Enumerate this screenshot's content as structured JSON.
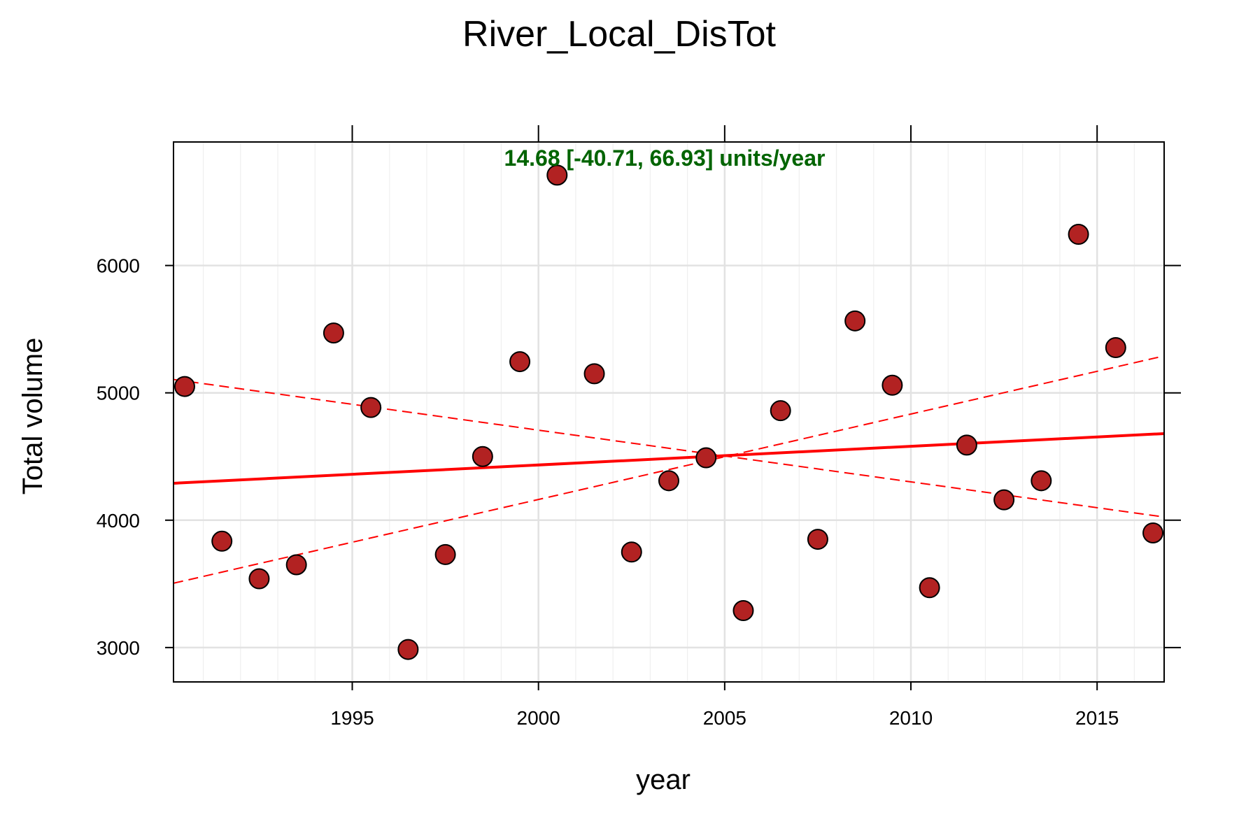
{
  "chart_data": {
    "type": "scatter",
    "title": "River_Local_DisTot",
    "xlabel": "year",
    "ylabel": "Total volume",
    "xlim": [
      1990.2,
      2016.8
    ],
    "ylim": [
      2730,
      6970
    ],
    "x_ticks": [
      1995,
      2000,
      2005,
      2010,
      2015
    ],
    "x_tick_labels": [
      "1995",
      "2000",
      "2005",
      "2010",
      "2015"
    ],
    "y_ticks": [
      3000,
      4000,
      5000,
      6000
    ],
    "y_tick_labels": [
      "3000",
      "4000",
      "5000",
      "6000"
    ],
    "grid": true,
    "annotation": "14.68 [-40.71, 66.93] units/year",
    "annotation_color": "#006400",
    "point_fill": "#b22222",
    "trend_color": "#ff0000",
    "points": [
      {
        "x": 1990.5,
        "y": 5050
      },
      {
        "x": 1991.5,
        "y": 3835
      },
      {
        "x": 1992.5,
        "y": 3540
      },
      {
        "x": 1993.5,
        "y": 3650
      },
      {
        "x": 1994.5,
        "y": 5470
      },
      {
        "x": 1995.5,
        "y": 4885
      },
      {
        "x": 1996.5,
        "y": 2985
      },
      {
        "x": 1997.5,
        "y": 3730
      },
      {
        "x": 1998.5,
        "y": 4500
      },
      {
        "x": 1999.5,
        "y": 5245
      },
      {
        "x": 2000.5,
        "y": 6710
      },
      {
        "x": 2001.5,
        "y": 5150
      },
      {
        "x": 2002.5,
        "y": 3750
      },
      {
        "x": 2003.5,
        "y": 4310
      },
      {
        "x": 2004.5,
        "y": 4490
      },
      {
        "x": 2005.5,
        "y": 3290
      },
      {
        "x": 2006.5,
        "y": 4860
      },
      {
        "x": 2007.5,
        "y": 3850
      },
      {
        "x": 2008.5,
        "y": 5565
      },
      {
        "x": 2009.5,
        "y": 5060
      },
      {
        "x": 2010.5,
        "y": 3470
      },
      {
        "x": 2011.5,
        "y": 4590
      },
      {
        "x": 2012.5,
        "y": 4160
      },
      {
        "x": 2013.5,
        "y": 4310
      },
      {
        "x": 2014.5,
        "y": 6245
      },
      {
        "x": 2015.5,
        "y": 5355
      },
      {
        "x": 2016.5,
        "y": 3900
      }
    ],
    "trend_lines": [
      {
        "style": "solid",
        "x": [
          1990.2,
          2016.8
        ],
        "y": [
          4290,
          4680
        ]
      },
      {
        "style": "dashed",
        "x": [
          1990.2,
          2016.8
        ],
        "y": [
          5105,
          4025
        ]
      },
      {
        "style": "dashed",
        "x": [
          1990.2,
          2016.8
        ],
        "y": [
          3505,
          5290
        ]
      }
    ]
  }
}
